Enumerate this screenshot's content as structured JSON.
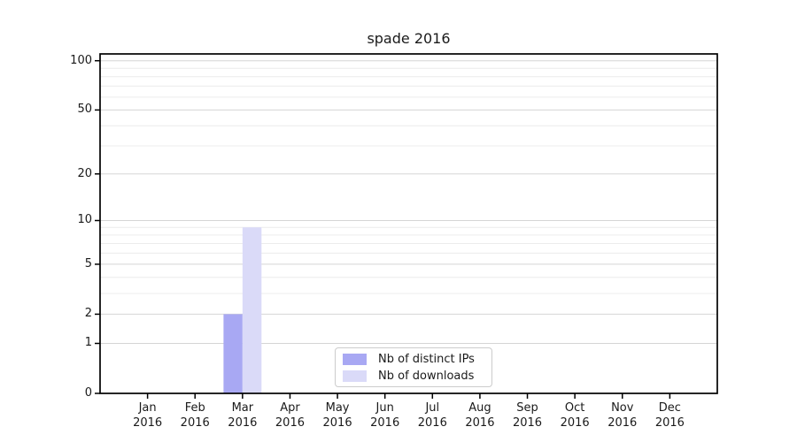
{
  "chart_data": {
    "type": "bar",
    "title": "spade 2016",
    "categories": [
      {
        "month": "Jan",
        "year": "2016"
      },
      {
        "month": "Feb",
        "year": "2016"
      },
      {
        "month": "Mar",
        "year": "2016"
      },
      {
        "month": "Apr",
        "year": "2016"
      },
      {
        "month": "May",
        "year": "2016"
      },
      {
        "month": "Jun",
        "year": "2016"
      },
      {
        "month": "Jul",
        "year": "2016"
      },
      {
        "month": "Aug",
        "year": "2016"
      },
      {
        "month": "Sep",
        "year": "2016"
      },
      {
        "month": "Oct",
        "year": "2016"
      },
      {
        "month": "Nov",
        "year": "2016"
      },
      {
        "month": "Dec",
        "year": "2016"
      }
    ],
    "series": [
      {
        "name": "Nb of distinct IPs",
        "color": "#a8a8f3",
        "values": [
          0,
          0,
          2,
          0,
          0,
          0,
          0,
          0,
          0,
          0,
          0,
          0
        ]
      },
      {
        "name": "Nb of downloads",
        "color": "#dadaf8",
        "values": [
          0,
          0,
          9,
          0,
          0,
          0,
          0,
          0,
          0,
          0,
          0,
          0
        ]
      }
    ],
    "xlabel": "",
    "ylabel": "",
    "y_axis": {
      "scale": "log1p",
      "ticks": [
        0,
        1,
        2,
        5,
        10,
        20,
        50,
        100
      ],
      "minor_gridlines": [
        3,
        4,
        6,
        7,
        8,
        9,
        30,
        40,
        60,
        70,
        80,
        90
      ],
      "ylim": [
        0,
        110
      ]
    },
    "legend": {
      "position": "bottom-center",
      "entries": [
        "Nb of distinct IPs",
        "Nb of downloads"
      ]
    },
    "grid": true,
    "colors": {
      "major_grid": "#d5d5d5",
      "minor_grid": "#ececec",
      "axis": "#000000",
      "text": "#1a1a1a",
      "background": "#ffffff"
    }
  }
}
